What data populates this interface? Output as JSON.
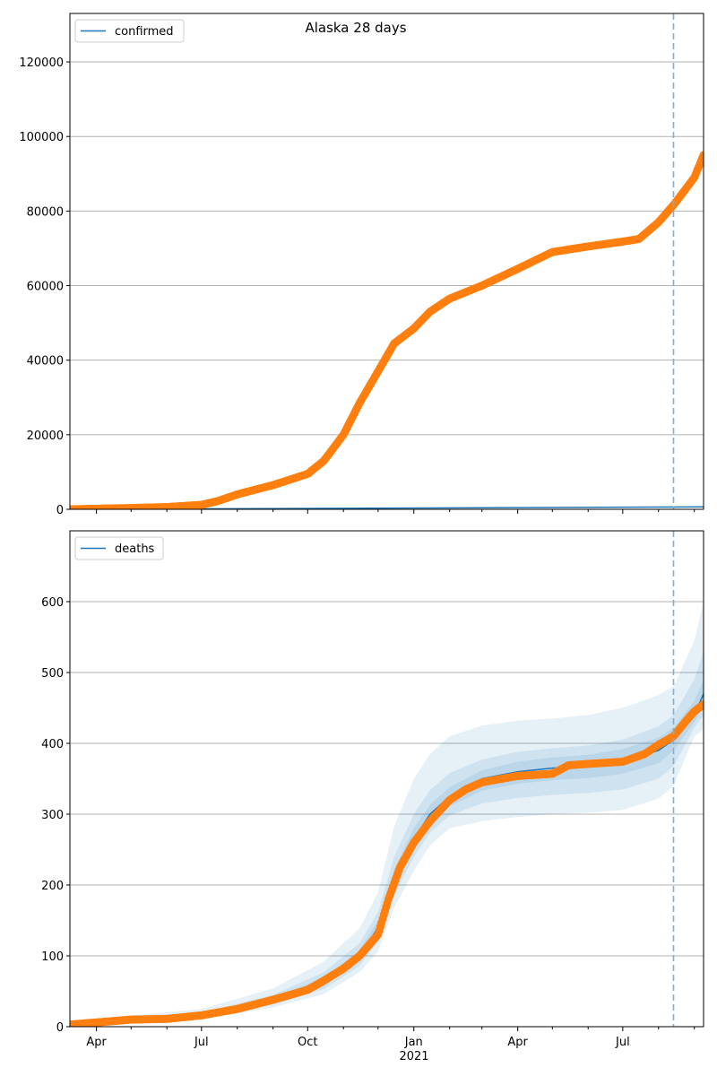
{
  "figure": {
    "title": "Alaska 28 days"
  },
  "colors": {
    "model": "#1f77b4",
    "observed": "#ff7f0e",
    "band": "#1f77b4",
    "cutoff": "#7ab0d6",
    "grid": "#b0b0b0"
  },
  "x_axis": {
    "start": "2020-03-09",
    "end": "2021-09-09",
    "cutoff": "2021-08-14",
    "ticks": [
      {
        "date": "2020-04-01",
        "label": "Apr"
      },
      {
        "date": "2020-07-01",
        "label": "Jul"
      },
      {
        "date": "2020-10-01",
        "label": "Oct"
      },
      {
        "date": "2021-01-01",
        "label": "Jan"
      },
      {
        "date": "2021-04-01",
        "label": "Apr"
      },
      {
        "date": "2021-07-01",
        "label": "Jul"
      }
    ],
    "year_label": "2021"
  },
  "chart_data": [
    {
      "type": "line",
      "legend": "confirmed",
      "legend_position": "top-left",
      "grid": "horizontal",
      "ylim": [
        0,
        133000
      ],
      "yticks": [
        0,
        20000,
        40000,
        60000,
        80000,
        100000,
        120000
      ],
      "observed": {
        "x": [
          "2020-03-09",
          "2020-04-01",
          "2020-05-01",
          "2020-06-01",
          "2020-07-01",
          "2020-07-15",
          "2020-08-01",
          "2020-09-01",
          "2020-10-01",
          "2020-10-15",
          "2020-11-01",
          "2020-11-15",
          "2020-12-01",
          "2020-12-15",
          "2021-01-01",
          "2021-01-15",
          "2021-02-01",
          "2021-03-01",
          "2021-04-01",
          "2021-05-01",
          "2021-06-01",
          "2021-07-01",
          "2021-07-15",
          "2021-08-01",
          "2021-08-15",
          "2021-09-01",
          "2021-09-09"
        ],
        "y": [
          0,
          150,
          350,
          600,
          1200,
          2200,
          4000,
          6500,
          9500,
          13000,
          20000,
          28500,
          37000,
          44500,
          48500,
          53000,
          56500,
          60000,
          64500,
          69000,
          70500,
          71800,
          72500,
          77000,
          82000,
          89000,
          95000
        ]
      },
      "model": {
        "x": [
          "2020-03-09",
          "2021-09-09"
        ],
        "y": [
          0,
          650
        ]
      }
    },
    {
      "type": "line",
      "legend": "deaths",
      "legend_position": "top-left",
      "grid": "horizontal",
      "ylim": [
        0,
        700
      ],
      "yticks": [
        0,
        100,
        200,
        300,
        400,
        500,
        600
      ],
      "observed": {
        "x": [
          "2020-03-09",
          "2020-04-01",
          "2020-05-01",
          "2020-06-01",
          "2020-07-01",
          "2020-08-01",
          "2020-09-01",
          "2020-10-01",
          "2020-10-15",
          "2020-11-01",
          "2020-11-15",
          "2020-12-01",
          "2020-12-10",
          "2020-12-20",
          "2021-01-01",
          "2021-01-15",
          "2021-02-01",
          "2021-02-15",
          "2021-03-01",
          "2021-04-01",
          "2021-05-01",
          "2021-05-15",
          "2021-06-01",
          "2021-07-01",
          "2021-07-20",
          "2021-08-01",
          "2021-08-14",
          "2021-08-25",
          "2021-09-01",
          "2021-09-09"
        ],
        "y": [
          3,
          6,
          10,
          11,
          16,
          25,
          38,
          52,
          65,
          82,
          100,
          130,
          180,
          225,
          260,
          290,
          320,
          335,
          345,
          354,
          357,
          369,
          371,
          374,
          385,
          398,
          410,
          432,
          445,
          455
        ]
      },
      "model": {
        "x": [
          "2020-03-09",
          "2020-05-01",
          "2020-07-01",
          "2020-09-01",
          "2020-10-15",
          "2020-11-15",
          "2020-12-01",
          "2020-12-15",
          "2021-01-01",
          "2021-01-15",
          "2021-02-01",
          "2021-03-01",
          "2021-04-01",
          "2021-05-01",
          "2021-06-01",
          "2021-07-01",
          "2021-08-01",
          "2021-08-14",
          "2021-09-01",
          "2021-09-09"
        ],
        "y": [
          3,
          10,
          16,
          37,
          63,
          100,
          140,
          210,
          265,
          300,
          325,
          350,
          360,
          365,
          368,
          375,
          390,
          405,
          440,
          470
        ]
      },
      "bands": [
        {
          "level": "outer",
          "x": [
            "2020-03-09",
            "2020-05-01",
            "2020-07-01",
            "2020-09-01",
            "2020-10-15",
            "2020-11-15",
            "2020-12-01",
            "2020-12-15",
            "2021-01-01",
            "2021-01-15",
            "2021-02-01",
            "2021-03-01",
            "2021-04-01",
            "2021-05-01",
            "2021-06-01",
            "2021-07-01",
            "2021-08-01",
            "2021-08-14",
            "2021-09-01",
            "2021-09-09"
          ],
          "low": [
            0,
            6,
            11,
            27,
            46,
            77,
            106,
            168,
            220,
            256,
            280,
            290,
            296,
            300,
            302,
            306,
            322,
            340,
            410,
            420
          ],
          "high": [
            8,
            16,
            25,
            54,
            92,
            139,
            190,
            283,
            350,
            385,
            410,
            425,
            432,
            435,
            440,
            450,
            468,
            480,
            545,
            600
          ]
        },
        {
          "level": "middle",
          "x": [
            "2020-03-09",
            "2020-05-01",
            "2020-07-01",
            "2020-09-01",
            "2020-10-15",
            "2020-11-15",
            "2020-12-01",
            "2020-12-15",
            "2021-01-01",
            "2021-01-15",
            "2021-02-01",
            "2021-03-01",
            "2021-04-01",
            "2021-05-01",
            "2021-06-01",
            "2021-07-01",
            "2021-08-01",
            "2021-08-14",
            "2021-09-01",
            "2021-09-09"
          ],
          "low": [
            1,
            8,
            13,
            31,
            53,
            86,
            120,
            186,
            240,
            274,
            298,
            315,
            323,
            327,
            330,
            335,
            350,
            368,
            422,
            440
          ],
          "high": [
            6,
            13,
            20,
            45,
            77,
            118,
            162,
            240,
            300,
            334,
            358,
            377,
            388,
            393,
            397,
            405,
            424,
            440,
            490,
            530
          ]
        },
        {
          "level": "inner",
          "x": [
            "2020-03-09",
            "2020-05-01",
            "2020-07-01",
            "2020-09-01",
            "2020-10-15",
            "2020-11-15",
            "2020-12-01",
            "2020-12-15",
            "2021-01-01",
            "2021-01-15",
            "2021-02-01",
            "2021-03-01",
            "2021-04-01",
            "2021-05-01",
            "2021-06-01",
            "2021-07-01",
            "2021-08-01",
            "2021-08-14",
            "2021-09-01",
            "2021-09-09"
          ],
          "low": [
            2,
            9,
            14,
            34,
            57,
            93,
            130,
            198,
            252,
            287,
            311,
            333,
            343,
            348,
            351,
            357,
            372,
            390,
            430,
            452
          ],
          "high": [
            4,
            11,
            18,
            41,
            69,
            108,
            150,
            222,
            280,
            313,
            338,
            362,
            374,
            380,
            384,
            392,
            408,
            422,
            460,
            490
          ]
        }
      ]
    }
  ]
}
